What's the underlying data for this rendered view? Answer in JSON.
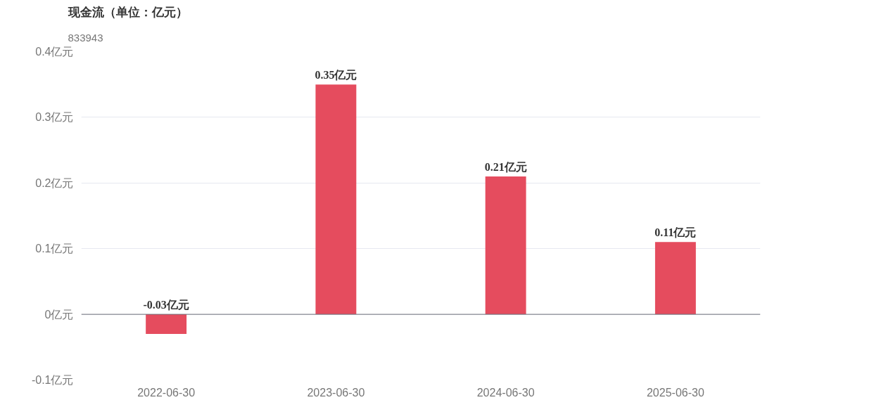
{
  "chart_data": {
    "type": "bar",
    "title": "现金流（单位：亿元）",
    "subtitle": "833943",
    "categories": [
      "2022-06-30",
      "2023-06-30",
      "2024-06-30",
      "2025-06-30"
    ],
    "values": [
      -0.03,
      0.35,
      0.21,
      0.11
    ],
    "value_labels": [
      "-0.03亿元",
      "0.35亿元",
      "0.21亿元",
      "0.11亿元"
    ],
    "color": "#e54c5e",
    "ylim": [
      -0.1,
      0.4
    ],
    "yticks": [
      {
        "value": -0.1,
        "label": "-0.1亿元"
      },
      {
        "value": 0,
        "label": "0亿元"
      },
      {
        "value": 0.1,
        "label": "0.1亿元"
      },
      {
        "value": 0.2,
        "label": "0.2亿元"
      },
      {
        "value": 0.3,
        "label": "0.3亿元"
      },
      {
        "value": 0.4,
        "label": "0.4亿元"
      }
    ],
    "grid": "y"
  }
}
